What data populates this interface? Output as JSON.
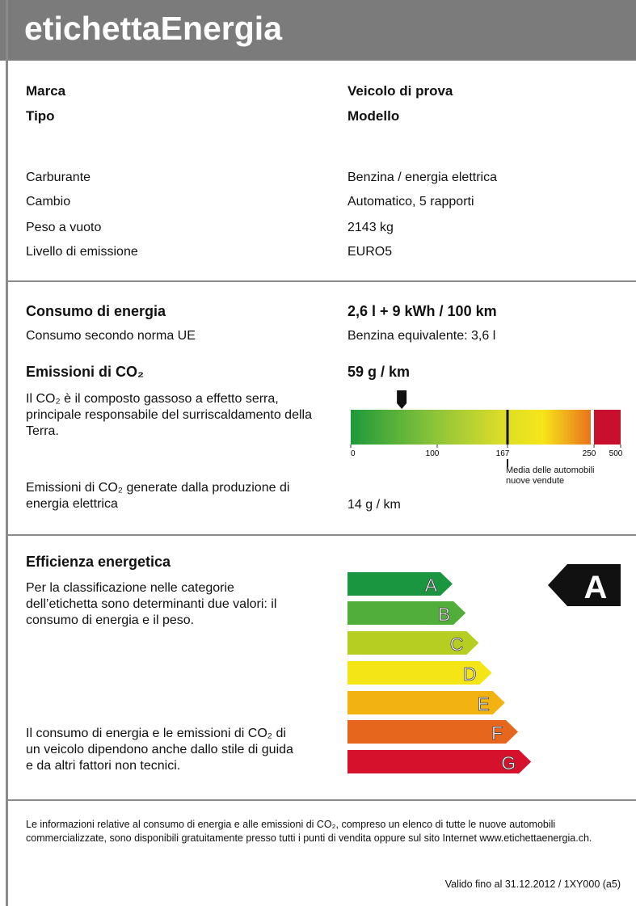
{
  "header": {
    "title": "etichettaEnergia"
  },
  "vehicle": {
    "main": [
      {
        "label": "Marca",
        "value": "Veicolo di prova"
      },
      {
        "label": "Tipo",
        "value": "Modello"
      }
    ],
    "specs": [
      {
        "label": "Carburante",
        "value": "Benzina / energia elettrica"
      },
      {
        "label": "Cambio",
        "value": "Automatico, 5 rapporti"
      },
      {
        "label": "Peso a vuoto",
        "value": "2143 kg"
      },
      {
        "label": "Livello di emissione",
        "value": "EURO5"
      }
    ]
  },
  "energy": {
    "consumption": {
      "label": "Consumo di energia",
      "value": "2,6 l + 9 kWh / 100 km"
    },
    "norm": {
      "label": "Consumo secondo norma UE",
      "value": "Benzina equivalente: 3,6 l"
    },
    "co2": {
      "label": "Emissioni di CO₂",
      "value": "59 g / km",
      "description": "Il CO₂ è il composto gassoso a effetto serra, principale responsabile del surriscaldamento della Terra."
    },
    "scale": {
      "ticks": [
        0,
        100,
        167,
        250,
        500
      ],
      "average_label": "Media delle automobili nuove vendute"
    },
    "production": {
      "label": "Emissioni di CO₂ generate dalla produzione di energia elettrica",
      "value": "14 g / km"
    }
  },
  "efficiency": {
    "title": "Efficienza energetica",
    "description": "Per la classificazione nelle categorie dell’etichetta sono determinanti due valori: il consumo di energia e il peso.",
    "note": "Il consumo di energia e le emissioni di CO₂ di un veicolo dipendono anche dallo stile di guida e da altri fattori non tecnici.",
    "classes": [
      "A",
      "B",
      "C",
      "D",
      "E",
      "F",
      "G"
    ],
    "rating": "A"
  },
  "footer": {
    "info": "Le informazioni relative al consumo di energia e alle emissioni di CO₂, compreso un elenco di tutte le nuove automobili commercializzate, sono disponibili gratuitamente presso tutti i punti di vendita oppure sul sito Internet www.etichettaenergia.ch.",
    "validity": "Valido fino al 31.12.2012 / 1XY000 (a5)"
  }
}
